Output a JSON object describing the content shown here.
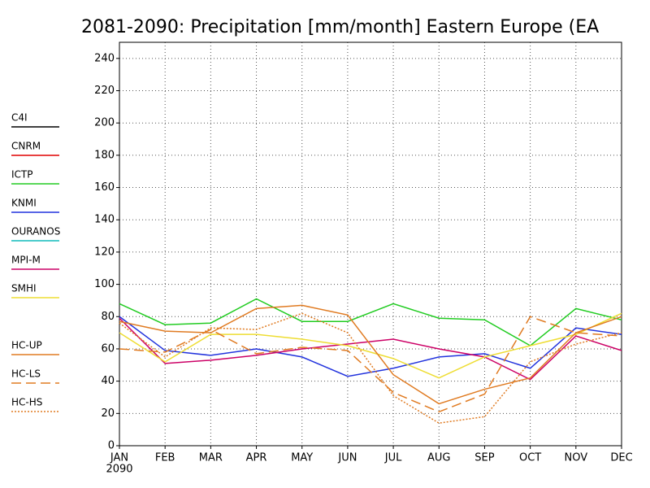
{
  "chart_data": {
    "type": "line",
    "title": "2081-2090: Precipitation [mm/month] Eastern Europe (EA",
    "categories": [
      "JAN",
      "FEB",
      "MAR",
      "APR",
      "MAY",
      "JUN",
      "JUL",
      "AUG",
      "SEP",
      "OCT",
      "NOV",
      "DEC"
    ],
    "year_label": "2090",
    "ylim": [
      0,
      250
    ],
    "yticks": [
      0,
      20,
      40,
      60,
      80,
      100,
      120,
      140,
      160,
      180,
      200,
      220,
      240
    ],
    "grid": true,
    "legend": "left",
    "series": [
      {
        "name": "C4I",
        "color": "#000000",
        "style": "solid",
        "values": [
          null,
          null,
          null,
          null,
          null,
          null,
          null,
          null,
          null,
          null,
          null,
          null
        ]
      },
      {
        "name": "CNRM",
        "color": "#e00000",
        "style": "solid",
        "values": [
          null,
          null,
          null,
          null,
          null,
          null,
          null,
          null,
          null,
          null,
          null,
          null
        ]
      },
      {
        "name": "ICTP",
        "color": "#22cc22",
        "style": "solid",
        "values": [
          88,
          75,
          76,
          91,
          77,
          77,
          88,
          79,
          78,
          62,
          85,
          78
        ]
      },
      {
        "name": "KNMI",
        "color": "#2233dd",
        "style": "solid",
        "values": [
          80,
          59,
          56,
          60,
          55,
          43,
          48,
          55,
          57,
          48,
          73,
          69
        ]
      },
      {
        "name": "OURANOS",
        "color": "#11bbbb",
        "style": "solid",
        "values": [
          null,
          null,
          null,
          null,
          null,
          null,
          null,
          null,
          null,
          null,
          null,
          null
        ]
      },
      {
        "name": "MPI-M",
        "color": "#cc0066",
        "style": "solid",
        "values": [
          79,
          51,
          53,
          56,
          60,
          63,
          66,
          60,
          55,
          41,
          68,
          59
        ]
      },
      {
        "name": "SMHI",
        "color": "#eedd33",
        "style": "solid",
        "values": [
          70,
          52,
          69,
          69,
          66,
          62,
          54,
          42,
          55,
          62,
          69,
          82
        ]
      },
      {
        "name": "HC-UP",
        "color": "#e07b22",
        "style": "solid",
        "values": [
          77,
          71,
          70,
          85,
          87,
          81,
          44,
          26,
          35,
          42,
          70,
          80
        ]
      },
      {
        "name": "HC-LS",
        "color": "#e07b22",
        "style": "dashed",
        "values": [
          60,
          58,
          72,
          57,
          61,
          59,
          33,
          21,
          32,
          80,
          70,
          68
        ]
      },
      {
        "name": "HC-HS",
        "color": "#e07b22",
        "style": "dotted",
        "values": [
          76,
          55,
          73,
          72,
          82,
          70,
          31,
          14,
          18,
          52,
          63,
          70
        ]
      }
    ]
  }
}
